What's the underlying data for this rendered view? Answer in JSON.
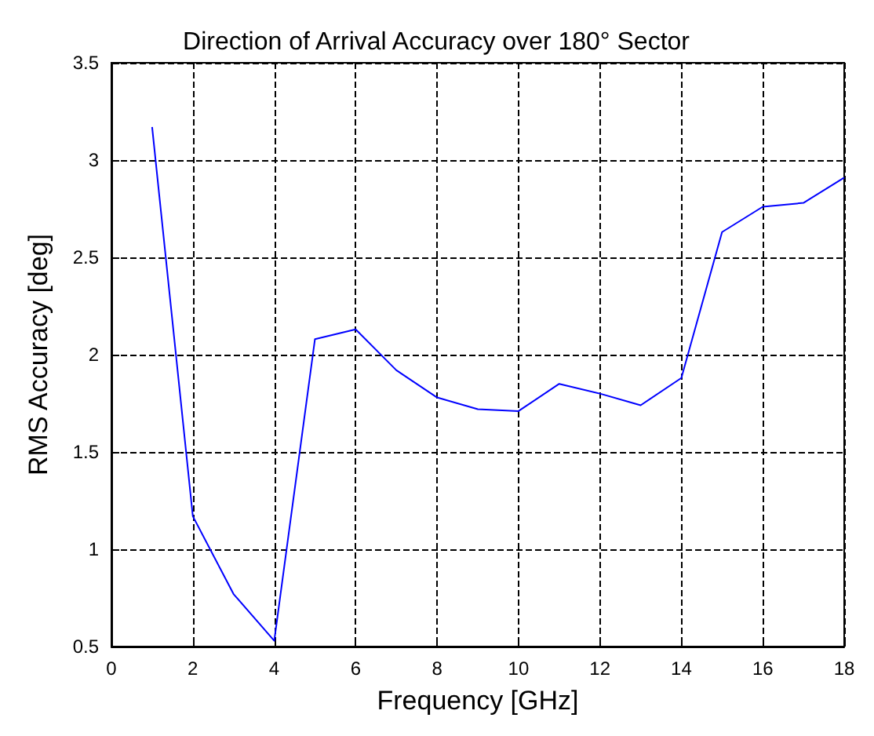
{
  "chart_data": {
    "type": "line",
    "title": "Direction of Arrival Accuracy over 180° Sector",
    "xlabel": "Frequency [GHz]",
    "ylabel": "RMS Accuracy [deg]",
    "x": [
      1,
      2,
      3,
      4,
      5,
      6,
      7,
      8,
      9,
      10,
      11,
      12,
      13,
      14,
      15,
      16,
      17,
      18
    ],
    "series": [
      {
        "color": "#0000ff",
        "values": [
          3.17,
          1.17,
          0.77,
          0.53,
          2.08,
          2.13,
          1.92,
          1.78,
          1.72,
          1.71,
          1.85,
          1.8,
          1.74,
          1.88,
          2.63,
          2.76,
          2.78,
          2.91
        ]
      }
    ],
    "xlim": [
      0,
      18
    ],
    "xticks": [
      0,
      2,
      4,
      6,
      8,
      10,
      12,
      14,
      16,
      18
    ],
    "ylim": [
      0.5,
      3.5
    ],
    "yticks": [
      0.5,
      1,
      1.5,
      2,
      2.5,
      3,
      3.5
    ],
    "grid": true,
    "line_style": "solid",
    "marker": "none"
  }
}
